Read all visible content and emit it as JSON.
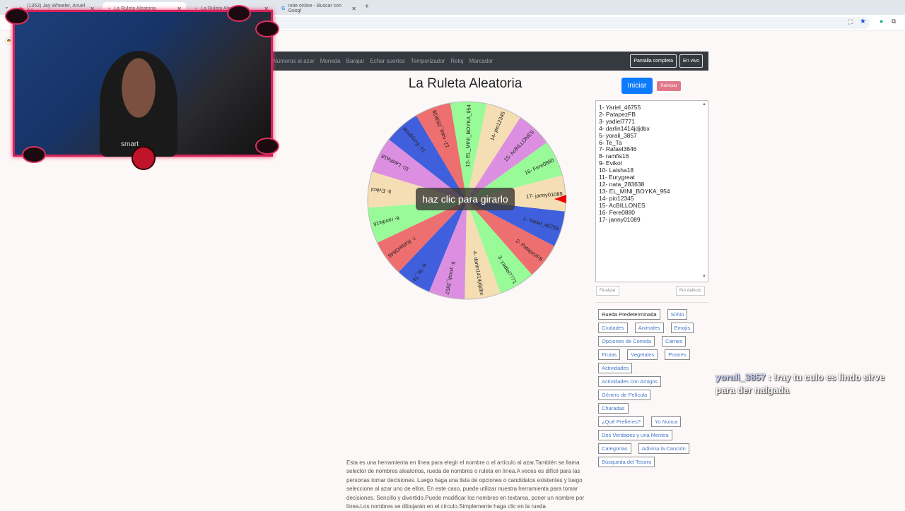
{
  "browser": {
    "tabs": [
      {
        "label": "(1353) Jay Wheeler, Anuel AA,",
        "icon": "youtube-icon"
      },
      {
        "label": "La Ruleta Aleatoria",
        "icon": "wheel-icon",
        "active": true
      },
      {
        "label": "La Ruleta Aleatoria",
        "icon": "wheel-icon"
      },
      {
        "label": "note online - Buscar con Googl",
        "icon": "google-icon"
      }
    ],
    "new_tab": "+",
    "close": "✕"
  },
  "nav": {
    "links": [
      "Números al azar",
      "Moneda",
      "Barajar",
      "Echar suertes",
      "Temporizador",
      "Reloj",
      "Marcador"
    ],
    "fullscreen": "Pantalla completa",
    "live": "En vivo"
  },
  "page": {
    "title": "La Ruleta Aleatoria",
    "start": "Iniciar",
    "reset": "Reiniciar",
    "spin_hint": "haz clic para girarlo",
    "finish": "Finalizar",
    "default": "Por defecto"
  },
  "wheel": {
    "entries": [
      "1- Yariel_46755",
      "2- PatapezFB",
      "3- yadiel7771",
      "4- darlin1414jdjdbx",
      "5- yorali_3857",
      "6- Te_Ta",
      "7- Rafael3646",
      "8- ramfis16",
      "9- Evikol",
      "10- Laisha18",
      "11- Eurygreat",
      "12- nata_283638",
      "13- EL_MINI_BOYKA_954",
      "14- pio12345",
      "15- AcBILLONES",
      "16- Fere0880",
      "17- janny01089"
    ],
    "colors": [
      "#3f5fdc",
      "#ee6f6f",
      "#98fb98",
      "#f5deb3",
      "#dc8fe0",
      "#3f5fdc",
      "#ee6f6f",
      "#98fb98",
      "#f5deb3",
      "#dc8fe0",
      "#3f5fdc",
      "#ee6f6f",
      "#98fb98",
      "#f5deb3",
      "#dc8fe0",
      "#98fb98",
      "#f5deb3"
    ],
    "pointer_color": "#ee0000"
  },
  "categories": [
    [
      "Rueda Predeterminada",
      "Sí/No"
    ],
    [
      "Ciudades",
      "Animales",
      "Emojis"
    ],
    [
      "Opciones de Comida",
      "Carnes"
    ],
    [
      "Frutas",
      "Vegetales",
      "Postres"
    ],
    [
      "Actividades"
    ],
    [
      "Actividades con Amigos"
    ],
    [
      "Género de Película"
    ],
    [
      "Charadas"
    ],
    [
      "¿Qué Prefieres?",
      "Yo Nunca"
    ],
    [
      "Dos Verdades y una Mentira"
    ],
    [
      "Categorías",
      "Adivina la Canción"
    ],
    [
      "Búsqueda del Tesoro"
    ]
  ],
  "description": "Esta es una herramienta en línea para elegir el nombre o el artículo al azar.También se llama selector de nombres aleatorios, rueda de nombres o ruleta en línea.A veces es difícil para las personas tomar decisiones. Luego haga una lista de opciones o candidatos existentes y luego seleccione al azar uno de ellos. En este caso, puede utilizar nuestra herramienta para tomar decisiones. Sencillo y divertido.Puede modificar los nombres en textarea, poner un nombre por línea.Los nombres se dibujarán en el círculo.Simplemente haga clic en la rueda",
  "chat": {
    "user": "yorali_3857",
    "message": ": !ray tu culo es lindo sirve para der nalgada"
  },
  "webcam": {
    "shirt_text": "smart"
  }
}
